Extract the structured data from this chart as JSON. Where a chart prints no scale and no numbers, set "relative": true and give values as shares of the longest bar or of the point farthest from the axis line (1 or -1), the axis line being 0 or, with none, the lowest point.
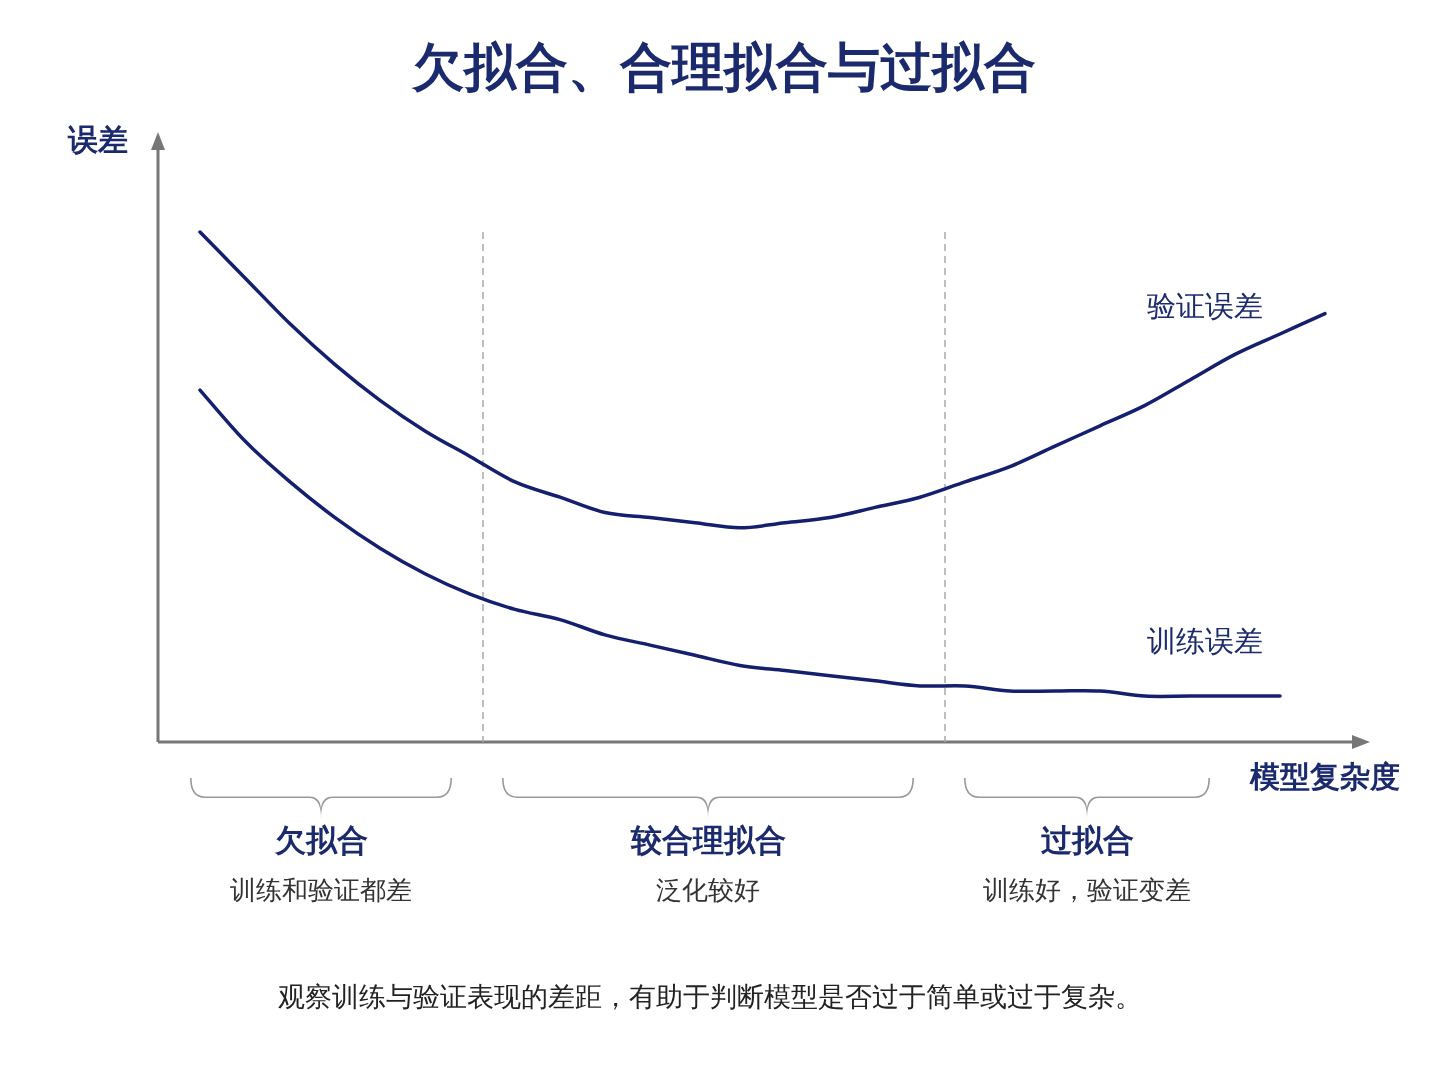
{
  "chart_data": {
    "type": "line",
    "title": "欠拟合、合理拟合与过拟合",
    "xlabel": "模型复杂度",
    "ylabel": "误差",
    "relative": true,
    "categories": [
      null,
      null,
      null,
      null,
      null,
      null,
      null,
      null,
      null,
      null,
      null,
      null,
      null,
      null,
      null,
      null,
      null,
      null,
      null,
      null,
      null,
      null,
      null,
      null,
      null,
      null
    ],
    "series": [
      {
        "name": "验证误差",
        "color": "#14206e",
        "values": [
          1.0,
          0.91,
          0.82,
          0.74,
          0.67,
          0.61,
          0.56,
          0.51,
          0.48,
          0.45,
          0.44,
          0.43,
          0.42,
          0.43,
          0.44,
          0.46,
          0.48,
          0.51,
          0.54,
          0.58,
          0.62,
          0.66,
          0.71,
          0.76,
          0.8,
          0.84
        ]
      },
      {
        "name": "训练误差",
        "color": "#14206e",
        "values": [
          0.69,
          0.59,
          0.51,
          0.44,
          0.38,
          0.33,
          0.29,
          0.26,
          0.24,
          0.21,
          0.19,
          0.17,
          0.15,
          0.14,
          0.13,
          0.12,
          0.11,
          0.11,
          0.1,
          0.1,
          0.1,
          0.09,
          0.09,
          0.09,
          0.09,
          null
        ]
      }
    ],
    "annotations": [
      "欠拟合",
      "训练和验证都差",
      "较合理拟合",
      "泛化较好",
      "过拟合",
      "训练好，验证变差",
      "观察训练与验证表现的差距，有助于判断模型是否过于简单或过于复杂。"
    ],
    "marker": "none",
    "line_style": "solid",
    "grid": false,
    "legend": false
  }
}
